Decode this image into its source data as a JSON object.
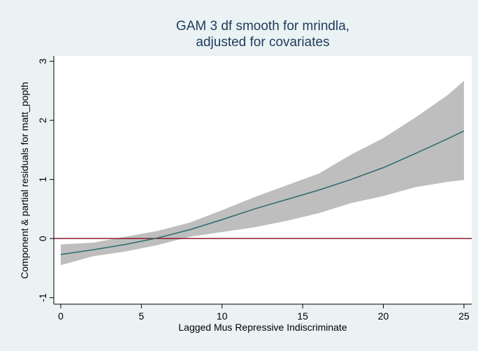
{
  "chart_data": {
    "type": "line",
    "title": [
      "GAM 3 df smooth for mrindla,",
      "adjusted for covariates"
    ],
    "xlabel": "Lagged Mus Repressive Indiscriminate",
    "ylabel": "Component & partial residuals for matt_popth",
    "x": [
      0,
      2,
      4,
      6,
      8,
      10,
      12,
      14,
      16,
      18,
      20,
      22,
      24,
      25
    ],
    "band": {
      "color": "#bebebe",
      "lower": [
        -0.45,
        -0.3,
        -0.22,
        -0.11,
        0.03,
        0.11,
        0.19,
        0.3,
        0.43,
        0.6,
        0.72,
        0.87,
        0.96,
        0.99
      ],
      "upper": [
        -0.1,
        -0.07,
        0.03,
        0.13,
        0.27,
        0.48,
        0.7,
        0.9,
        1.1,
        1.42,
        1.7,
        2.05,
        2.43,
        2.67
      ]
    },
    "series": [
      {
        "color": "#2b6a6c",
        "values": [
          -0.27,
          -0.19,
          -0.1,
          0.01,
          0.15,
          0.32,
          0.5,
          0.66,
          0.82,
          1.0,
          1.2,
          1.44,
          1.69,
          1.82
        ]
      }
    ],
    "hline": {
      "value": 0,
      "color": "#8b1a2e"
    },
    "xlim": [
      -0.43,
      25.48
    ],
    "xticks": [
      0,
      5,
      10,
      15,
      20,
      25
    ],
    "ylim": [
      -1.11,
      3.09
    ],
    "yticks": [
      -1,
      0,
      1,
      2,
      3
    ]
  }
}
